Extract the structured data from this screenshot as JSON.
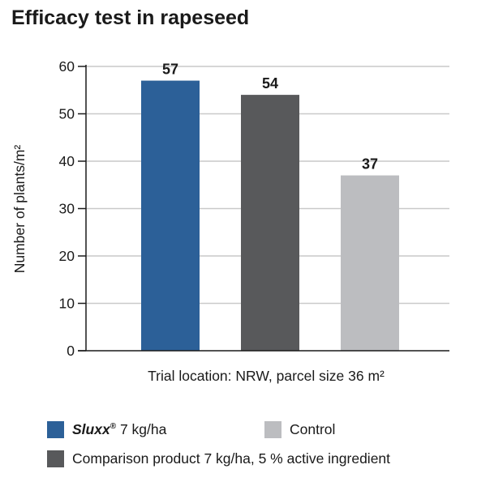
{
  "title": "Efficacy test in rapeseed",
  "chart_data": {
    "type": "bar",
    "title": "Efficacy test in rapeseed",
    "ylabel": "Number of plants/m²",
    "xlabel": "Trial location: NRW, parcel size 36 m²",
    "ylim": [
      0,
      60
    ],
    "yticks": [
      0,
      10,
      20,
      30,
      40,
      50,
      60
    ],
    "grid": true,
    "categories": [
      "Sluxx® 7 kg/ha",
      "Comparison product 7 kg/ha, 5 % active ingredient",
      "Control"
    ],
    "values": [
      57,
      54,
      37
    ],
    "colors": [
      "#2c6098",
      "#58595b",
      "#bcbdc0"
    ],
    "legend_placement": "bottom"
  },
  "legend": {
    "sluxx_brand": "Sluxx",
    "sluxx_reg": "®",
    "sluxx_rest": " 7 kg/ha",
    "control": "Control",
    "comparison": "Comparison product 7 kg/ha, 5 % active ingredient"
  }
}
